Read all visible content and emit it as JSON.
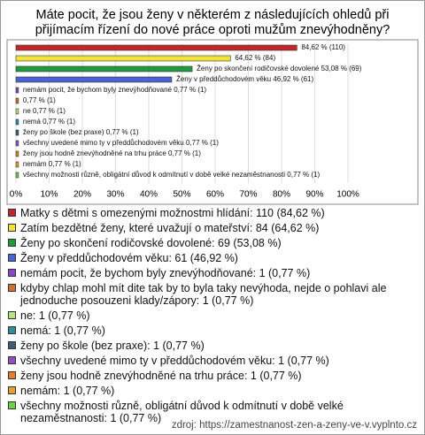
{
  "chart_data": {
    "type": "barh",
    "title": [
      "Máte pocit, že jsou ženy v některém z následujících ohledů při",
      "přijímacím řízení do nové práce oproti mužům znevýhodněny?"
    ],
    "values": [
      84.62,
      64.62,
      53.08,
      46.92,
      0.77,
      0.77,
      0.77,
      0.77,
      0.77,
      0.77,
      0.77,
      0.77,
      0.77
    ],
    "value_labels": [
      "84,62 % (110)",
      "64,62 % (84)",
      "Ženy po skončení rodičovské dovolené 53,08 % (69)",
      "Ženy v předdůchodovém věku 46,92 % (61)",
      "nemám pocit, že bychom byly znevýhodňované 0,77 % (1)",
      "0,77 % (1)",
      "ne 0,77 % (1)",
      "nemá 0,77 % (1)",
      "ženy po škole (bez praxe) 0,77 % (1)",
      "všechny uvedené mimo ty v předdůchodovém věku 0,77 % (1)",
      "ženy jsou hodně znevýhodněné na trhu práce 0,77 % (1)",
      "nemám 0,77 % (1)",
      "všechny možnosti různě, obligátní důvod k odmítnutí v době velké nezaměstnanosti 0,77 % (1)"
    ],
    "legend_labels": [
      "Matky s dětmi s omezenými možnostmi hlídání: 110 (84,62 %)",
      "Zatím bezdětné ženy, které uvažují o mateřství: 84 (64,62 %)",
      "Ženy po skončení rodičovské dovolené: 69 (53,08 %)",
      "Ženy v předdůchodovém věku: 61 (46,92 %)",
      "nemám pocit, že bychom byly znevýhodňované: 1 (0,77 %)",
      "kdyby chlap mohl mít dite tak by to byla taky nevýhoda, nejde o pohlavi ale jednoduche posouzeni klady/zápory: 1 (0,77 %)",
      "ne: 1 (0,77 %)",
      "nemá: 1 (0,77 %)",
      "ženy po škole (bez praxe): 1 (0,77 %)",
      "všechny uvedené mimo ty v předdůchodovém věku: 1 (0,77 %)",
      "ženy jsou hodně znevýhodněné na trhu práce: 1 (0,77 %)",
      "nemám: 1 (0,77 %)",
      "všechny možnosti různě, obligátní důvod k odmítnutí v době velké nezaměstnanosti: 1 (0,77 %)"
    ],
    "colors": [
      "#c0262b",
      "#f2e23a",
      "#1f9a3c",
      "#4a63d4",
      "#8a45c8",
      "#d0702e",
      "#b4e38a",
      "#2f8f9f",
      "#3b5f70",
      "#9050c0",
      "#e07f30",
      "#e3a032",
      "#6fd045"
    ],
    "xlim": [
      0,
      100
    ],
    "xticks": [
      {
        "value": 0,
        "label": "0%"
      },
      {
        "value": 10,
        "label": "10%"
      },
      {
        "value": 20,
        "label": "20%"
      },
      {
        "value": 30,
        "label": "30%"
      },
      {
        "value": 40,
        "label": "40%"
      },
      {
        "value": 50,
        "label": "50%"
      },
      {
        "value": 60,
        "label": "60%"
      },
      {
        "value": 70,
        "label": "70%"
      },
      {
        "value": 80,
        "label": "80%"
      },
      {
        "value": 90,
        "label": "90%"
      },
      {
        "value": 100,
        "label": "100%"
      }
    ],
    "grid": true,
    "source": "zdroj: https://zamestnanost-zen-a-zeny-ve-v.vyplnto.cz"
  }
}
